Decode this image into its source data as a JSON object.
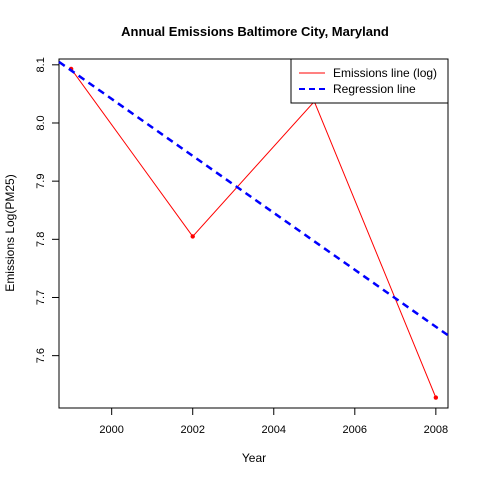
{
  "chart_data": {
    "type": "line",
    "title": "Annual Emissions Baltimore City, Maryland",
    "xlabel": "Year",
    "ylabel": "Emissions Log(PM25)",
    "xlim": [
      1998.7,
      2008.3
    ],
    "ylim": [
      7.51,
      8.11
    ],
    "xticks": [
      2000,
      2002,
      2004,
      2006,
      2008
    ],
    "yticks": [
      7.6,
      7.7,
      7.8,
      7.9,
      8.0,
      8.1
    ],
    "grid": false,
    "legend_position": "top-right",
    "series": [
      {
        "name": "Emissions line (log)",
        "style": "solid",
        "color": "#ff0000",
        "point_color": "#ff0000",
        "x": [
          1999,
          2002,
          2005,
          2008
        ],
        "y": [
          8.093,
          7.805,
          8.037,
          7.528
        ]
      },
      {
        "name": "Regression line",
        "style": "dashed",
        "color": "#0000ff",
        "x": [
          1998.7,
          2008.3
        ],
        "y": [
          8.105,
          7.635
        ]
      }
    ]
  }
}
